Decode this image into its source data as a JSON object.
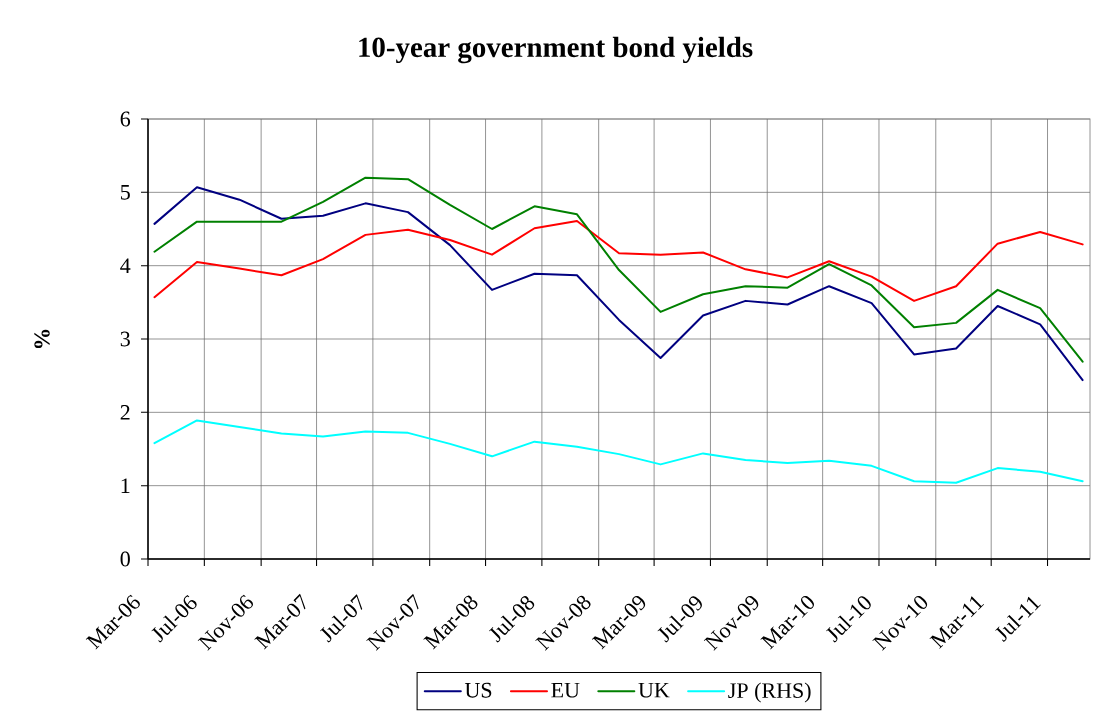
{
  "chart_data": {
    "type": "line",
    "title": "10-year government bond yields",
    "ylabel": "%",
    "x": [
      "2006-03-15",
      "2006-06-15",
      "2006-09-15",
      "2006-12-15",
      "2007-03-15",
      "2007-06-15",
      "2007-09-15",
      "2007-12-15",
      "2008-03-15",
      "2008-06-15",
      "2008-09-15",
      "2008-12-15",
      "2009-03-15",
      "2009-06-15",
      "2009-09-15",
      "2009-12-15",
      "2010-03-15",
      "2010-06-15",
      "2010-09-15",
      "2010-12-15",
      "2011-03-15",
      "2011-06-15",
      "2011-09-15"
    ],
    "xlim": [
      "2006-03",
      "2011-10"
    ],
    "xticks": [
      {
        "value": "2006-03",
        "label": "Mar-06"
      },
      {
        "value": "2006-07",
        "label": "Jul-06"
      },
      {
        "value": "2006-11",
        "label": "Nov-06"
      },
      {
        "value": "2007-03",
        "label": "Mar-07"
      },
      {
        "value": "2007-07",
        "label": "Jul-07"
      },
      {
        "value": "2007-11",
        "label": "Nov-07"
      },
      {
        "value": "2008-03",
        "label": "Mar-08"
      },
      {
        "value": "2008-07",
        "label": "Jul-08"
      },
      {
        "value": "2008-11",
        "label": "Nov-08"
      },
      {
        "value": "2009-03",
        "label": "Mar-09"
      },
      {
        "value": "2009-07",
        "label": "Jul-09"
      },
      {
        "value": "2009-11",
        "label": "Nov-09"
      },
      {
        "value": "2010-03",
        "label": "Mar-10"
      },
      {
        "value": "2010-07",
        "label": "Jul-10"
      },
      {
        "value": "2010-11",
        "label": "Nov-10"
      },
      {
        "value": "2011-03",
        "label": "Mar-11"
      },
      {
        "value": "2011-07",
        "label": "Jul-11"
      }
    ],
    "ylim": [
      0,
      6
    ],
    "yticks": [
      0,
      1,
      2,
      3,
      4,
      5,
      6
    ],
    "grid": true,
    "legend": "bottom",
    "series": [
      {
        "name": "US",
        "color": "#000080",
        "values": [
          4.57,
          5.07,
          4.9,
          4.64,
          4.68,
          4.85,
          4.73,
          4.28,
          3.67,
          3.89,
          3.87,
          3.26,
          2.74,
          3.32,
          3.52,
          3.47,
          3.72,
          3.49,
          2.79,
          2.87,
          3.45,
          3.2,
          2.44
        ]
      },
      {
        "name": "EU",
        "color": "#ff0000",
        "values": [
          3.57,
          4.05,
          3.96,
          3.87,
          4.09,
          4.42,
          4.49,
          4.35,
          4.15,
          4.51,
          4.61,
          4.17,
          4.15,
          4.18,
          3.95,
          3.84,
          4.06,
          3.85,
          3.52,
          3.72,
          4.3,
          4.46,
          4.29
        ]
      },
      {
        "name": "UK",
        "color": "#008000",
        "values": [
          4.19,
          4.6,
          4.6,
          4.6,
          4.87,
          5.2,
          5.18,
          4.83,
          4.5,
          4.81,
          4.7,
          3.94,
          3.37,
          3.61,
          3.72,
          3.7,
          4.02,
          3.73,
          3.16,
          3.22,
          3.67,
          3.42,
          2.69
        ]
      },
      {
        "name": "JP (RHS)",
        "color": "#00ffff",
        "values": [
          1.58,
          1.89,
          1.8,
          1.71,
          1.67,
          1.74,
          1.72,
          1.57,
          1.4,
          1.6,
          1.53,
          1.43,
          1.29,
          1.44,
          1.35,
          1.31,
          1.34,
          1.27,
          1.06,
          1.04,
          1.24,
          1.19,
          1.06
        ]
      }
    ]
  }
}
